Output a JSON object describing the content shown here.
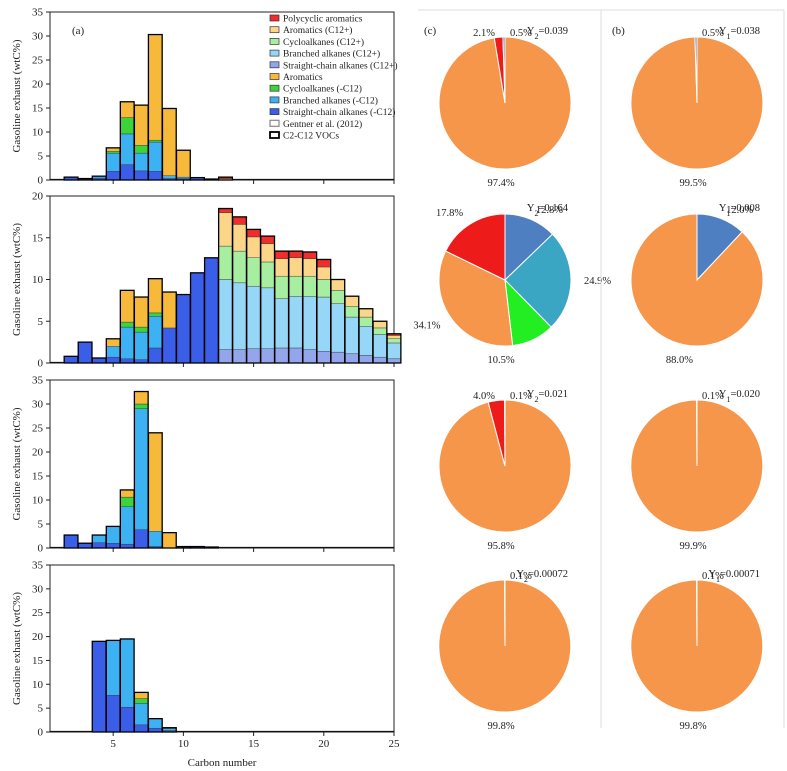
{
  "colors": {
    "straight_lt": "#3a5ee8",
    "branched_lt": "#3db2f2",
    "cyclo_lt": "#3bd43b",
    "aromatic_lt": "#f7b93a",
    "straight_gt": "#93a6ec",
    "branched_gt": "#96d6f6",
    "cyclo_gt": "#a7eea0",
    "aromatic_gt": "#fbd588",
    "pah": "#ef2d2d",
    "pie_orange": "#f5964a",
    "pie_blue": "#4e7fc0",
    "pie_red": "#ee1b1b",
    "pie_teal": "#3aa6c4",
    "pie_green": "#22ee22"
  },
  "legend": {
    "items": [
      {
        "label": "Polycyclic aromatics",
        "key": "pah",
        "kind": "box"
      },
      {
        "label": "Aromatics (C12+)",
        "key": "aromatic_gt",
        "kind": "box"
      },
      {
        "label": "Cycloalkanes (C12+)",
        "key": "cyclo_gt",
        "kind": "box"
      },
      {
        "label": "Branched alkanes (C12+)",
        "key": "branched_gt",
        "kind": "box"
      },
      {
        "label": "Straight-chain alkanes (C12+)",
        "key": "straight_gt",
        "kind": "box"
      },
      {
        "label": "Aromatics",
        "key": "aromatic_lt",
        "kind": "box"
      },
      {
        "label": "Cycloalkanes (-C12)",
        "key": "cyclo_lt",
        "kind": "box"
      },
      {
        "label": "Branched alkanes (-C12)",
        "key": "branched_lt",
        "kind": "box"
      },
      {
        "label": "Straight-chain alkanes (-C12)",
        "key": "straight_lt",
        "kind": "box"
      },
      {
        "label": "Gentner et al. (2012)",
        "key": "gentner",
        "kind": "outline-gray"
      },
      {
        "label": "C2-C12 VOCs",
        "key": "voc",
        "kind": "outline-black"
      }
    ]
  },
  "panel_labels": {
    "a": "(a)",
    "b": "(b)",
    "c": "(c)"
  },
  "chart_data": [
    {
      "type": "bar",
      "stacked": true,
      "panel": "(a)",
      "xlabel": "Carbon number",
      "ylabel": "Gasoline exhaust (wtC%)",
      "xlim": [
        0.5,
        25
      ],
      "x_ticks": [
        5,
        10,
        15,
        20,
        25
      ],
      "subplots": [
        {
          "ylim": [
            0,
            35
          ],
          "y_ticks": [
            0,
            5,
            10,
            15,
            20,
            25,
            30,
            35
          ],
          "bars": [
            {
              "x": 2,
              "straight_lt": 0.6
            },
            {
              "x": 3,
              "straight_lt": 0.3
            },
            {
              "x": 4,
              "straight_lt": 0.4,
              "branched_lt": 0.4
            },
            {
              "x": 5,
              "straight_lt": 1.8,
              "branched_lt": 3.8,
              "cyclo_lt": 0.4,
              "aromatic_lt": 0.7
            },
            {
              "x": 6,
              "straight_lt": 3.2,
              "branched_lt": 6.4,
              "cyclo_lt": 3.4,
              "aromatic_lt": 3.3
            },
            {
              "x": 7,
              "straight_lt": 1.9,
              "branched_lt": 3.7,
              "cyclo_lt": 1.6,
              "aromatic_lt": 8.4
            },
            {
              "x": 8,
              "straight_lt": 1.8,
              "branched_lt": 6.1,
              "cyclo_lt": 0.4,
              "aromatic_lt": 22.0
            },
            {
              "x": 9,
              "straight_lt": 0.3,
              "branched_lt": 0.6,
              "aromatic_lt": 14.0
            },
            {
              "x": 10,
              "straight_lt": 0.3,
              "branched_lt": 0.3,
              "aromatic_lt": 5.6
            },
            {
              "x": 11,
              "straight_lt": 0.5
            },
            {
              "x": 12,
              "straight_lt": 0.2
            },
            {
              "x": 13,
              "aromatic_gt": 0.3,
              "pah": 0.3
            }
          ]
        },
        {
          "ylim": [
            0,
            20
          ],
          "y_ticks": [
            0,
            5,
            10,
            15,
            20
          ],
          "bars": [
            {
              "x": 2,
              "straight_lt": 0.8
            },
            {
              "x": 3,
              "straight_lt": 2.5
            },
            {
              "x": 4,
              "straight_lt": 0.6
            },
            {
              "x": 5,
              "straight_lt": 0.7,
              "branched_lt": 1.3,
              "aromatic_lt": 0.9
            },
            {
              "x": 6,
              "straight_lt": 0.5,
              "branched_lt": 3.8,
              "cyclo_lt": 0.6,
              "aromatic_lt": 3.8
            },
            {
              "x": 7,
              "straight_lt": 0.4,
              "branched_lt": 3.3,
              "cyclo_lt": 0.6,
              "aromatic_lt": 3.6
            },
            {
              "x": 8,
              "straight_lt": 1.8,
              "branched_lt": 3.8,
              "cyclo_lt": 0.4,
              "aromatic_lt": 4.1
            },
            {
              "x": 9,
              "straight_lt": 4.2,
              "aromatic_lt": 4.3
            },
            {
              "x": 10,
              "straight_lt": 8.2
            },
            {
              "x": 11,
              "straight_lt": 10.8
            },
            {
              "x": 12,
              "straight_lt": 12.6
            },
            {
              "x": 13,
              "straight_gt": 1.6,
              "branched_gt": 8.4,
              "cyclo_gt": 4.0,
              "aromatic_gt": 4.0,
              "pah": 0.5
            },
            {
              "x": 14,
              "straight_gt": 1.6,
              "branched_gt": 8.0,
              "cyclo_gt": 3.8,
              "aromatic_gt": 3.2,
              "pah": 0.9
            },
            {
              "x": 15,
              "straight_gt": 1.7,
              "branched_gt": 7.5,
              "cyclo_gt": 3.4,
              "aromatic_gt": 2.5,
              "pah": 0.9
            },
            {
              "x": 16,
              "straight_gt": 1.7,
              "branched_gt": 7.3,
              "cyclo_gt": 3.1,
              "aromatic_gt": 2.2,
              "pah": 0.9
            },
            {
              "x": 17,
              "straight_gt": 1.8,
              "branched_gt": 5.9,
              "cyclo_gt": 2.7,
              "aromatic_gt": 2.1,
              "pah": 0.9
            },
            {
              "x": 18,
              "straight_gt": 1.8,
              "branched_gt": 6.2,
              "cyclo_gt": 2.4,
              "aromatic_gt": 2.2,
              "pah": 0.8
            },
            {
              "x": 19,
              "straight_gt": 1.6,
              "branched_gt": 6.4,
              "cyclo_gt": 2.4,
              "aromatic_gt": 2.1,
              "pah": 0.8
            },
            {
              "x": 20,
              "straight_gt": 1.4,
              "branched_gt": 6.5,
              "cyclo_gt": 2.1,
              "aromatic_gt": 1.5,
              "pah": 0.9
            },
            {
              "x": 21,
              "straight_gt": 1.3,
              "branched_gt": 5.8,
              "cyclo_gt": 1.6,
              "aromatic_gt": 1.3
            },
            {
              "x": 22,
              "straight_gt": 1.1,
              "branched_gt": 4.4,
              "cyclo_gt": 1.3,
              "aromatic_gt": 1.2
            },
            {
              "x": 23,
              "straight_gt": 0.9,
              "branched_gt": 3.5,
              "cyclo_gt": 1.1,
              "aromatic_gt": 1.0
            },
            {
              "x": 24,
              "straight_gt": 0.7,
              "branched_gt": 2.7,
              "cyclo_gt": 0.8,
              "aromatic_gt": 0.8
            },
            {
              "x": 25,
              "straight_gt": 0.5,
              "branched_gt": 1.9,
              "cyclo_gt": 0.5,
              "aromatic_gt": 0.4,
              "pah": 0.2
            }
          ]
        },
        {
          "ylim": [
            0,
            35
          ],
          "y_ticks": [
            0,
            5,
            10,
            15,
            20,
            25,
            30,
            35
          ],
          "bars": [
            {
              "x": 2,
              "straight_lt": 2.7
            },
            {
              "x": 3,
              "straight_lt": 1.0
            },
            {
              "x": 4,
              "straight_lt": 1.1,
              "branched_lt": 1.6
            },
            {
              "x": 5,
              "straight_lt": 1.0,
              "branched_lt": 3.5
            },
            {
              "x": 6,
              "straight_lt": 0.8,
              "branched_lt": 7.8,
              "cyclo_lt": 2.0,
              "aromatic_lt": 1.5
            },
            {
              "x": 7,
              "straight_lt": 3.8,
              "branched_lt": 25.2,
              "cyclo_lt": 1.0,
              "aromatic_lt": 2.6
            },
            {
              "x": 8,
              "straight_lt": 0.3,
              "branched_lt": 3.2,
              "aromatic_lt": 20.5
            },
            {
              "x": 9,
              "aromatic_lt": 3.2
            },
            {
              "x": 10,
              "straight_lt": 0.3
            },
            {
              "x": 11,
              "straight_lt": 0.3
            },
            {
              "x": 12,
              "straight_lt": 0.2
            }
          ]
        },
        {
          "ylim": [
            0,
            35
          ],
          "y_ticks": [
            0,
            5,
            10,
            15,
            20,
            25,
            30,
            35
          ],
          "bars": [
            {
              "x": 4,
              "straight_lt": 19.0
            },
            {
              "x": 5,
              "straight_lt": 7.7,
              "branched_lt": 11.5
            },
            {
              "x": 6,
              "straight_lt": 5.2,
              "branched_lt": 14.3
            },
            {
              "x": 7,
              "straight_lt": 1.5,
              "branched_lt": 4.5,
              "cyclo_lt": 1.0,
              "aromatic_lt": 1.3
            },
            {
              "x": 8,
              "straight_lt": 0.8,
              "branched_lt": 2.0
            },
            {
              "x": 9,
              "straight_lt": 0.3,
              "branched_lt": 0.4,
              "aromatic_lt": 0.2
            }
          ]
        }
      ]
    },
    {
      "type": "pie",
      "panel": "(c)",
      "pies": [
        {
          "y_label": "Y",
          "y_sub": "2",
          "y_value": "=0.039",
          "slices": [
            {
              "value": 97.4,
              "label": "97.4%",
              "color": "pie_orange"
            },
            {
              "value": 2.1,
              "label": "2.1%",
              "color": "pie_red"
            },
            {
              "value": 0.5,
              "label": "0.5%",
              "color": "pie_blue"
            }
          ]
        },
        {
          "y_label": "Y",
          "y_sub": "2",
          "y_value": "=0.164",
          "slices": [
            {
              "value": 12.8,
              "label": "12.8%",
              "color": "pie_blue"
            },
            {
              "value": 24.9,
              "label": "24.9%",
              "color": "pie_teal"
            },
            {
              "value": 10.5,
              "label": "10.5%",
              "color": "pie_green"
            },
            {
              "value": 34.1,
              "label": "34.1%",
              "color": "pie_orange"
            },
            {
              "value": 17.8,
              "label": "17.8%",
              "color": "pie_red"
            }
          ]
        },
        {
          "y_label": "Y",
          "y_sub": "2",
          "y_value": "=0.021",
          "slices": [
            {
              "value": 95.8,
              "label": "95.8%",
              "color": "pie_orange"
            },
            {
              "value": 4.0,
              "label": "4.0%",
              "color": "pie_red"
            },
            {
              "value": 0.1,
              "label": "0.1%",
              "color": "pie_blue"
            }
          ]
        },
        {
          "y_label": "Y",
          "y_sub": "2",
          "y_value": "=0.00072",
          "slices": [
            {
              "value": 99.8,
              "label": "99.8%",
              "color": "pie_orange"
            },
            {
              "value": 0.1,
              "label": "0.1%",
              "color": "pie_blue"
            }
          ]
        }
      ]
    },
    {
      "type": "pie",
      "panel": "(b)",
      "pies": [
        {
          "y_label": "Y",
          "y_sub": "1",
          "y_value": "=0.038",
          "slices": [
            {
              "value": 99.5,
              "label": "99.5%",
              "color": "pie_orange"
            },
            {
              "value": 0.5,
              "label": "0.5%",
              "color": "pie_blue"
            }
          ]
        },
        {
          "y_label": "Y",
          "y_sub": "1",
          "y_value": "=0.008",
          "slices": [
            {
              "value": 12.0,
              "label": "12.0%",
              "color": "pie_blue"
            },
            {
              "value": 88.0,
              "label": "88.0%",
              "color": "pie_orange"
            }
          ]
        },
        {
          "y_label": "Y",
          "y_sub": "1",
          "y_value": "=0.020",
          "slices": [
            {
              "value": 99.9,
              "label": "99.9%",
              "color": "pie_orange"
            },
            {
              "value": 0.1,
              "label": "0.1%",
              "color": "pie_blue"
            }
          ]
        },
        {
          "y_label": "Y",
          "y_sub": "1",
          "y_value": "=0.00071",
          "slices": [
            {
              "value": 99.8,
              "label": "99.8%",
              "color": "pie_orange"
            },
            {
              "value": 0.1,
              "label": "0.1%",
              "color": "pie_blue"
            }
          ]
        }
      ]
    }
  ]
}
